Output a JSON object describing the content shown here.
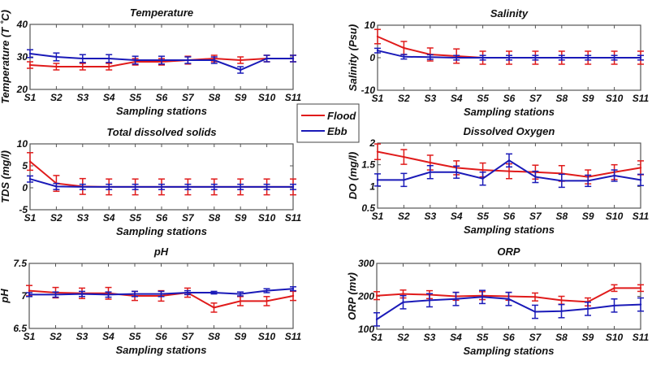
{
  "legend": {
    "placement": "center",
    "entries": [
      {
        "name": "Flood",
        "color": "#e01b1b"
      },
      {
        "name": "Ebb",
        "color": "#1a1ab8"
      }
    ]
  },
  "chart_data": [
    {
      "type": "line",
      "title": "Temperature",
      "xlabel": "Sampling stations",
      "ylabel": "Temperature (T ˚C)",
      "categories": [
        "S1",
        "S2",
        "S3",
        "S4",
        "S5",
        "S6",
        "S7",
        "S8",
        "S9",
        "S10",
        "S11"
      ],
      "ylim": [
        20,
        40
      ],
      "yticks": [
        "20",
        "30",
        "40"
      ],
      "ytick_values": [
        20,
        30,
        40
      ],
      "series": [
        {
          "name": "Flood",
          "color": "#e01b1b",
          "values": [
            27.5,
            27,
            27,
            27,
            28.5,
            28.5,
            29,
            29.5,
            29,
            29.5,
            29.5
          ],
          "errors": [
            1,
            1,
            1,
            1,
            1,
            1,
            1.2,
            1,
            1,
            1,
            1
          ]
        },
        {
          "name": "Ebb",
          "color": "#1a1ab8",
          "values": [
            31,
            30,
            29.5,
            29.5,
            29,
            29,
            29,
            29,
            26,
            29.5,
            29.5
          ],
          "errors": [
            1.2,
            1.2,
            1.2,
            1.2,
            1.2,
            1.2,
            1,
            1,
            1,
            1,
            1
          ]
        }
      ]
    },
    {
      "type": "line",
      "title": "Salinity",
      "xlabel": "Sampling stations",
      "ylabel": "Salinity (Psu)",
      "categories": [
        "S1",
        "S2",
        "S3",
        "S4",
        "S5",
        "S6",
        "S7",
        "S8",
        "S9",
        "S10",
        "S11"
      ],
      "ylim": [
        -10,
        10
      ],
      "yticks": [
        "-10",
        "0",
        "10"
      ],
      "ytick_values": [
        -10,
        0,
        10
      ],
      "series": [
        {
          "name": "Flood",
          "color": "#e01b1b",
          "values": [
            6.5,
            3,
            1,
            0.5,
            0,
            0,
            0,
            0,
            0,
            0,
            0
          ],
          "errors": [
            2.2,
            2,
            2,
            2.2,
            2,
            2,
            2,
            2,
            2,
            2,
            2
          ]
        },
        {
          "name": "Ebb",
          "color": "#1a1ab8",
          "values": [
            2.2,
            0.3,
            0.2,
            0,
            0,
            0,
            0,
            0,
            0,
            0,
            0
          ],
          "errors": [
            0.7,
            0.7,
            0.7,
            0.7,
            0.7,
            0.7,
            0.7,
            0.7,
            0.7,
            0.7,
            0.7
          ]
        }
      ]
    },
    {
      "type": "line",
      "title": "Total dissolved solids",
      "xlabel": "Sampling stations",
      "ylabel": "TDS (mg/l)",
      "categories": [
        "S1",
        "S2",
        "S3",
        "S4",
        "S5",
        "S6",
        "S7",
        "S8",
        "S9",
        "S10",
        "S11"
      ],
      "ylim": [
        -5,
        10
      ],
      "yticks": [
        "-5",
        "0",
        "5",
        "10"
      ],
      "ytick_values": [
        -5,
        0,
        5,
        10
      ],
      "series": [
        {
          "name": "Flood",
          "color": "#e01b1b",
          "values": [
            6,
            1,
            0.3,
            0.2,
            0.2,
            0.2,
            0.2,
            0.2,
            0.2,
            0.2,
            0.2
          ],
          "errors": [
            2,
            1.8,
            1.8,
            1.8,
            1.8,
            1.8,
            1.8,
            1.8,
            1.8,
            1.8,
            1.8
          ]
        },
        {
          "name": "Ebb",
          "color": "#1a1ab8",
          "values": [
            2,
            0.3,
            0.2,
            0.2,
            0.2,
            0.2,
            0.2,
            0.2,
            0.2,
            0.2,
            0.2
          ],
          "errors": [
            0.7,
            0.7,
            0.6,
            0.6,
            0.6,
            0.6,
            0.6,
            0.6,
            0.6,
            0.6,
            0.6
          ]
        }
      ]
    },
    {
      "type": "line",
      "title": "Dissolved Oxygen",
      "xlabel": "Sampling stations",
      "ylabel": "DO (mg/l)",
      "categories": [
        "S1",
        "S2",
        "S3",
        "S4",
        "S5",
        "S6",
        "S7",
        "S8",
        "S9",
        "S10",
        "S11"
      ],
      "ylim": [
        0.5,
        2
      ],
      "yticks": [
        "0.5",
        "1",
        "1.5",
        "2"
      ],
      "ytick_values": [
        0.5,
        1,
        1.5,
        2
      ],
      "series": [
        {
          "name": "Flood",
          "color": "#e01b1b",
          "values": [
            1.8,
            1.68,
            1.55,
            1.43,
            1.38,
            1.35,
            1.33,
            1.3,
            1.22,
            1.33,
            1.43
          ],
          "errors": [
            0.18,
            0.17,
            0.17,
            0.16,
            0.16,
            0.17,
            0.16,
            0.18,
            0.16,
            0.17,
            0.16
          ]
        },
        {
          "name": "Ebb",
          "color": "#1a1ab8",
          "values": [
            1.15,
            1.15,
            1.33,
            1.33,
            1.18,
            1.6,
            1.22,
            1.13,
            1.13,
            1.25,
            1.15
          ],
          "errors": [
            0.14,
            0.15,
            0.15,
            0.14,
            0.15,
            0.15,
            0.13,
            0.15,
            0.13,
            0.13,
            0.13
          ]
        }
      ]
    },
    {
      "type": "line",
      "title": "pH",
      "xlabel": "Sampling stations",
      "ylabel": "pH",
      "categories": [
        "S1",
        "S2",
        "S3",
        "S4",
        "S5",
        "S6",
        "S7",
        "S8",
        "S9",
        "S10",
        "S11"
      ],
      "ylim": [
        6.5,
        7.5
      ],
      "yticks": [
        "6.5",
        "7",
        "7.5"
      ],
      "ytick_values": [
        6.5,
        7,
        7.5
      ],
      "series": [
        {
          "name": "Flood",
          "color": "#e01b1b",
          "values": [
            7.08,
            7.05,
            7.04,
            7.04,
            7.0,
            7.0,
            7.05,
            6.82,
            6.92,
            6.92,
            7.0
          ],
          "errors": [
            0.08,
            0.08,
            0.08,
            0.09,
            0.07,
            0.08,
            0.07,
            0.07,
            0.07,
            0.07,
            0.07
          ]
        },
        {
          "name": "Ebb",
          "color": "#1a1ab8",
          "values": [
            7.02,
            7.02,
            7.03,
            7.02,
            7.03,
            7.03,
            7.05,
            7.05,
            7.03,
            7.08,
            7.11
          ],
          "errors": [
            0.03,
            0.04,
            0.04,
            0.04,
            0.04,
            0.04,
            0.03,
            0.02,
            0.03,
            0.03,
            0.03
          ]
        }
      ]
    },
    {
      "type": "line",
      "title": "ORP",
      "xlabel": "Sampling stations",
      "ylabel": "ORP (mv)",
      "categories": [
        "S1",
        "S2",
        "S3",
        "S4",
        "S5",
        "S6",
        "S7",
        "S8",
        "S9",
        "S10",
        "S11"
      ],
      "ylim": [
        100,
        300
      ],
      "yticks": [
        "100",
        "200",
        "300"
      ],
      "ytick_values": [
        100,
        200,
        300
      ],
      "series": [
        {
          "name": "Flood",
          "color": "#e01b1b",
          "values": [
            202,
            207,
            205,
            200,
            202,
            200,
            198,
            188,
            183,
            225,
            225
          ],
          "errors": [
            12,
            12,
            12,
            12,
            12,
            12,
            12,
            12,
            12,
            10,
            10
          ]
        },
        {
          "name": "Ebb",
          "color": "#1a1ab8",
          "values": [
            130,
            182,
            188,
            192,
            198,
            192,
            153,
            155,
            162,
            172,
            175
          ],
          "errors": [
            20,
            20,
            20,
            20,
            20,
            20,
            20,
            20,
            20,
            20,
            20
          ]
        }
      ]
    }
  ]
}
